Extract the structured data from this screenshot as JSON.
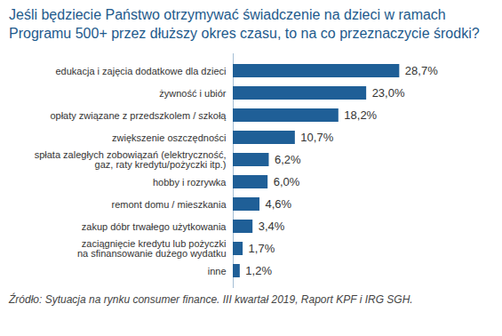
{
  "chart_data": {
    "type": "bar",
    "orientation": "horizontal",
    "title": "Jeśli będziecie Państwo otrzymywać świadczenie na dzieci w ramach Programu 500+ przez dłuższy okres czasu, to na co przeznaczycie środki?",
    "caption": "Źródło: Sytuacja na rynku consumer finance. III kwartał 2019, Raport KPF i IRG SGH.",
    "categories": [
      "edukacja i zajęcia dodatkowe dla dzieci",
      "żywność i ubiór",
      "opłaty związane z przedszkolem / szkołą",
      "zwiększenie oszczędności",
      "spłata zaległych zobowiązań (elektryczność,\ngaz, raty kredytu/pożyczki itp.)",
      "hobby i rozrywka",
      "remont domu / mieszkania",
      "zakup dóbr trwałego użytkowania",
      "zaciągnięcie kredytu lub pożyczki\nna sfinansowanie dużego wydatku",
      "inne"
    ],
    "values": [
      28.7,
      23.0,
      18.2,
      10.7,
      6.2,
      6.0,
      4.6,
      3.4,
      1.7,
      1.2
    ],
    "value_labels": [
      "28,7%",
      "23,0%",
      "18,2%",
      "10,7%",
      "6,2%",
      "6,0%",
      "4,6%",
      "3,4%",
      "1,7%",
      "1,2%"
    ],
    "color": "#1f5f97",
    "xlim": [
      0,
      36
    ],
    "xticks": [],
    "grid": false,
    "data_labels": true,
    "tick_labels": "y"
  }
}
